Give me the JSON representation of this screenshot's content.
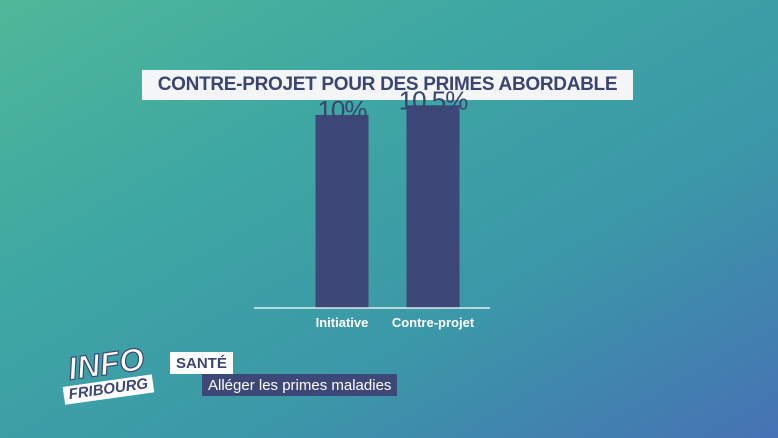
{
  "chart_data": {
    "type": "bar",
    "title": "CONTRE-PROJET POUR DES PRIMES ABORDABLE",
    "categories": [
      "Initiative",
      "Contre-projet"
    ],
    "values": [
      10,
      10.5
    ],
    "value_labels": [
      "10%",
      "10.5%"
    ],
    "ylim": [
      0,
      11.5
    ],
    "grid": false,
    "bar_color": "#3d4778"
  },
  "overlay": {
    "logo_top": "INFO",
    "logo_bottom": "FRIBOURG",
    "topic": "SANTÉ",
    "subtitle": "Alléger les primes maladies"
  },
  "colors": {
    "text_dark": "#3b4571",
    "baseline": "#ffffff"
  }
}
